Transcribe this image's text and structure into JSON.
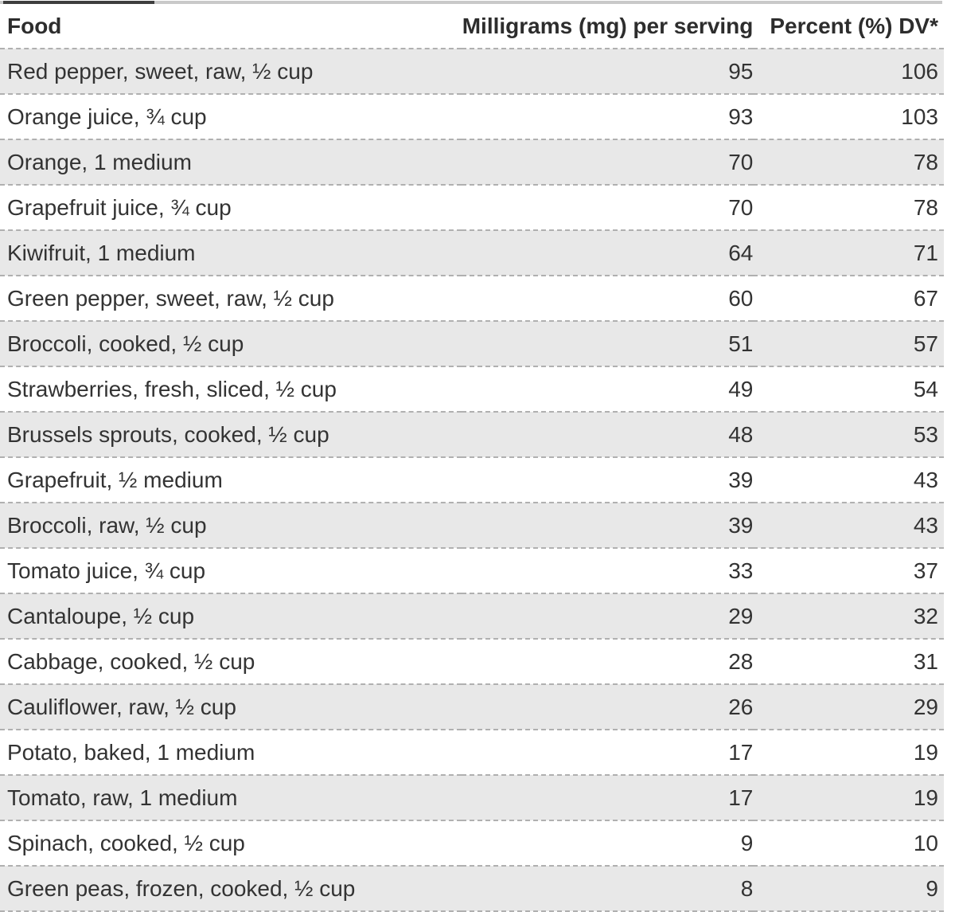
{
  "table": {
    "columns": [
      {
        "label": "Food",
        "align": "left"
      },
      {
        "label": "Milligrams (mg) per serving",
        "align": "right"
      },
      {
        "label": "Percent (%) DV*",
        "align": "right"
      }
    ],
    "rows": [
      {
        "food": "Red pepper, sweet, raw, ½ cup",
        "mg": 95,
        "dv": 106
      },
      {
        "food": "Orange juice, ¾ cup",
        "mg": 93,
        "dv": 103
      },
      {
        "food": "Orange, 1 medium",
        "mg": 70,
        "dv": 78
      },
      {
        "food": "Grapefruit juice, ¾ cup",
        "mg": 70,
        "dv": 78
      },
      {
        "food": "Kiwifruit, 1 medium",
        "mg": 64,
        "dv": 71
      },
      {
        "food": "Green pepper, sweet, raw, ½ cup",
        "mg": 60,
        "dv": 67
      },
      {
        "food": "Broccoli, cooked, ½ cup",
        "mg": 51,
        "dv": 57
      },
      {
        "food": "Strawberries, fresh, sliced, ½ cup",
        "mg": 49,
        "dv": 54
      },
      {
        "food": "Brussels sprouts, cooked, ½ cup",
        "mg": 48,
        "dv": 53
      },
      {
        "food": "Grapefruit, ½ medium",
        "mg": 39,
        "dv": 43
      },
      {
        "food": "Broccoli, raw, ½ cup",
        "mg": 39,
        "dv": 43
      },
      {
        "food": "Tomato juice, ¾ cup",
        "mg": 33,
        "dv": 37
      },
      {
        "food": "Cantaloupe, ½ cup",
        "mg": 29,
        "dv": 32
      },
      {
        "food": "Cabbage, cooked, ½ cup",
        "mg": 28,
        "dv": 31
      },
      {
        "food": "Cauliflower, raw, ½ cup",
        "mg": 26,
        "dv": 29
      },
      {
        "food": "Potato, baked, 1 medium",
        "mg": 17,
        "dv": 19
      },
      {
        "food": "Tomato, raw, 1 medium",
        "mg": 17,
        "dv": 19
      },
      {
        "food": "Spinach, cooked, ½ cup",
        "mg": 9,
        "dv": 10
      },
      {
        "food": "Green peas, frozen, cooked, ½ cup",
        "mg": 8,
        "dv": 9
      }
    ]
  },
  "colors": {
    "row_stripe_bg": "#e8e8e8",
    "row_divider_dashed": "#b0b0b0",
    "scrollbar_track": "#c9c9c9",
    "scrollbar_thumb": "#3e3e3e",
    "header_text": "#2d2d2d",
    "body_text": "#333333"
  }
}
